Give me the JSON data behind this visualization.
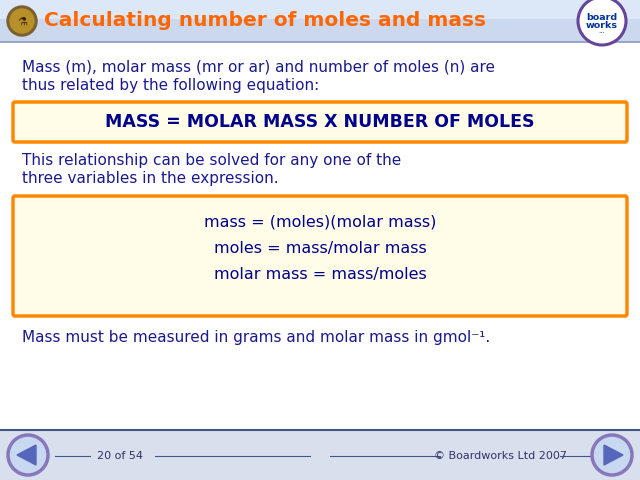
{
  "title": "Calculating number of moles and mass",
  "title_color": "#FF6600",
  "header_bg": "#ccd8ee",
  "body_bg": "#ffffff",
  "footer_bg": "#d8e0ee",
  "text1_line1": "Mass (m), molar mass (mr or ar) and number of moles (n) are",
  "text1_line2": "thus related by the following equation:",
  "box1_text": "MASS = MOLAR MASS X NUMBER OF MOLES",
  "box1_bg": "#fffde8",
  "box1_border": "#FF8800",
  "text2_line1": "This relationship can be solved for any one of the",
  "text2_line2": "three variables in the expression.",
  "box2_lines": [
    "mass = (moles)(molar mass)",
    "moles = mass/molar mass",
    "molar mass = mass/moles"
  ],
  "box2_bg": "#fffde8",
  "box2_border": "#FF8800",
  "footer_text_left": "20 of 54",
  "footer_text_right": "© Boardworks Ltd 2007",
  "bottom_text": "Mass must be measured in grams and molar mass in gmol⁻¹.",
  "body_text_color": "#1a1a8c",
  "box1_text_color": "#00008B"
}
